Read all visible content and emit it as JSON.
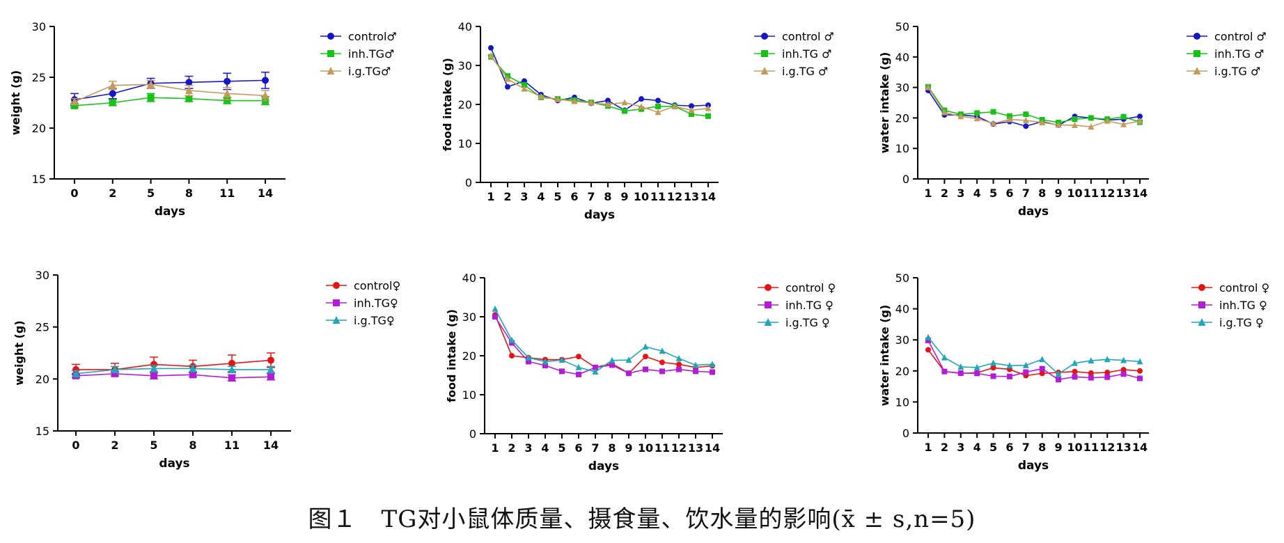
{
  "figure": {
    "caption": "图１　TG对小鼠体质量、摄食量、饮水量的影响(x̄ ± s,n=5)"
  },
  "chart_data": [
    {
      "type": "line",
      "panel": "weight-male",
      "xlabel": "days",
      "ylabel": "weight (g)",
      "categories": [
        "0",
        "2",
        "5",
        "8",
        "11",
        "14"
      ],
      "ylim": [
        15,
        30
      ],
      "yticks": [
        15,
        20,
        25,
        30
      ],
      "grid": false,
      "legend_position": "right",
      "error_bars": true,
      "series": [
        {
          "name": "control♂",
          "color": "#1515c8",
          "marker": "circle",
          "values": [
            22.8,
            23.4,
            24.4,
            24.5,
            24.6,
            24.7
          ],
          "errors": [
            0.6,
            0.5,
            0.5,
            0.6,
            0.8,
            0.8
          ]
        },
        {
          "name": "inh.TG♂",
          "color": "#17c217",
          "marker": "square",
          "values": [
            22.2,
            22.5,
            23.0,
            22.9,
            22.7,
            22.7
          ],
          "errors": [
            0.2,
            0.3,
            0.4,
            0.3,
            0.3,
            0.4
          ]
        },
        {
          "name": "i.g.TG♂",
          "color": "#c49a5a",
          "marker": "triangle",
          "values": [
            22.6,
            24.2,
            24.3,
            23.7,
            23.4,
            23.2
          ],
          "errors": [
            0.3,
            0.4,
            0.4,
            0.5,
            0.6,
            0.5
          ]
        }
      ]
    },
    {
      "type": "line",
      "panel": "food-male",
      "xlabel": "days",
      "ylabel": "food intake (g)",
      "categories": [
        "1",
        "2",
        "3",
        "4",
        "5",
        "6",
        "7",
        "8",
        "9",
        "10",
        "11",
        "12",
        "13",
        "14"
      ],
      "ylim": [
        0,
        40
      ],
      "yticks": [
        0,
        10,
        20,
        30,
        40
      ],
      "grid": false,
      "legend_position": "right",
      "series": [
        {
          "name": "control ♂",
          "color": "#1515c8",
          "marker": "circle",
          "values": [
            34.5,
            24.5,
            26.0,
            22.5,
            21.0,
            21.8,
            20.3,
            21.0,
            18.5,
            21.4,
            21.0,
            19.8,
            19.6,
            19.8
          ]
        },
        {
          "name": "inh.TG ♂",
          "color": "#17c217",
          "marker": "square",
          "values": [
            32.2,
            27.3,
            25.0,
            21.8,
            21.4,
            21.1,
            20.5,
            19.6,
            18.3,
            18.8,
            19.5,
            19.5,
            17.5,
            17.0
          ]
        },
        {
          "name": "i.g.TG ♂",
          "color": "#c49a5a",
          "marker": "triangle",
          "values": [
            32.5,
            26.5,
            24.0,
            22.0,
            21.3,
            20.8,
            20.4,
            20.0,
            20.5,
            19.4,
            18.0,
            19.5,
            18.5,
            19.0
          ]
        }
      ]
    },
    {
      "type": "line",
      "panel": "water-male",
      "xlabel": "days",
      "ylabel": "water intake (g)",
      "categories": [
        "1",
        "2",
        "3",
        "4",
        "5",
        "6",
        "7",
        "8",
        "9",
        "10",
        "11",
        "12",
        "13",
        "14"
      ],
      "ylim": [
        0,
        50
      ],
      "yticks": [
        0,
        10,
        20,
        30,
        40,
        50
      ],
      "grid": false,
      "legend_position": "right",
      "series": [
        {
          "name": "control ♂",
          "color": "#1515c8",
          "marker": "circle",
          "values": [
            29.0,
            21.0,
            21.0,
            20.5,
            18.0,
            18.8,
            17.3,
            18.8,
            17.6,
            20.5,
            20.0,
            19.3,
            19.6,
            20.5
          ]
        },
        {
          "name": "inh.TG ♂",
          "color": "#17c217",
          "marker": "square",
          "values": [
            30.2,
            22.5,
            21.2,
            21.6,
            22.0,
            20.6,
            21.2,
            19.4,
            18.5,
            19.6,
            20.0,
            19.6,
            20.4,
            18.6
          ]
        },
        {
          "name": "i.g.TG ♂",
          "color": "#c49a5a",
          "marker": "triangle",
          "values": [
            30.0,
            21.8,
            20.5,
            19.8,
            18.2,
            19.5,
            19.2,
            18.5,
            17.7,
            17.6,
            17.1,
            19.0,
            17.9,
            19.0
          ]
        }
      ]
    },
    {
      "type": "line",
      "panel": "weight-female",
      "xlabel": "days",
      "ylabel": "weight (g)",
      "categories": [
        "0",
        "2",
        "5",
        "8",
        "11",
        "14"
      ],
      "ylim": [
        15,
        30
      ],
      "yticks": [
        15,
        20,
        25,
        30
      ],
      "grid": false,
      "legend_position": "right",
      "error_bars": true,
      "series": [
        {
          "name": "control♀",
          "color": "#e51414",
          "marker": "circle",
          "values": [
            20.9,
            20.9,
            21.4,
            21.2,
            21.5,
            21.8
          ],
          "errors": [
            0.5,
            0.6,
            0.7,
            0.6,
            0.8,
            0.7
          ]
        },
        {
          "name": "inh.TG♀",
          "color": "#b41bd8",
          "marker": "square",
          "values": [
            20.3,
            20.5,
            20.3,
            20.4,
            20.1,
            20.2
          ],
          "errors": [
            0.2,
            0.2,
            0.3,
            0.2,
            0.3,
            0.3
          ]
        },
        {
          "name": "i.g.TG♀",
          "color": "#1fa6b8",
          "marker": "triangle",
          "values": [
            20.5,
            20.9,
            21.0,
            21.0,
            20.9,
            20.9
          ],
          "errors": [
            0.3,
            0.3,
            0.3,
            0.3,
            0.3,
            0.3
          ]
        }
      ]
    },
    {
      "type": "line",
      "panel": "food-female",
      "xlabel": "days",
      "ylabel": "food intake (g)",
      "categories": [
        "1",
        "2",
        "3",
        "4",
        "5",
        "6",
        "7",
        "8",
        "9",
        "10",
        "11",
        "12",
        "13",
        "14"
      ],
      "ylim": [
        0,
        40
      ],
      "yticks": [
        0,
        10,
        20,
        30,
        40
      ],
      "grid": false,
      "legend_position": "right",
      "series": [
        {
          "name": "control ♀",
          "color": "#e51414",
          "marker": "circle",
          "values": [
            30.5,
            20.0,
            19.5,
            19.0,
            19.0,
            19.8,
            17.0,
            18.0,
            15.5,
            19.8,
            18.3,
            17.8,
            17.0,
            17.4
          ]
        },
        {
          "name": "inh.TG ♀",
          "color": "#b41bd8",
          "marker": "square",
          "values": [
            30.0,
            23.3,
            18.5,
            17.5,
            16.0,
            15.2,
            17.0,
            17.6,
            15.5,
            16.5,
            16.0,
            16.5,
            16.0,
            15.8
          ]
        },
        {
          "name": "i.g.TG ♀",
          "color": "#1fa6b8",
          "marker": "triangle",
          "values": [
            32.0,
            24.0,
            19.5,
            18.5,
            18.9,
            17.0,
            15.9,
            18.8,
            18.9,
            22.3,
            21.2,
            19.3,
            17.6,
            17.8
          ]
        }
      ]
    },
    {
      "type": "line",
      "panel": "water-female",
      "xlabel": "days",
      "ylabel": "water intake (g)",
      "categories": [
        "1",
        "2",
        "3",
        "4",
        "5",
        "6",
        "7",
        "8",
        "9",
        "10",
        "11",
        "12",
        "13",
        "14"
      ],
      "ylim": [
        0,
        50
      ],
      "yticks": [
        0,
        10,
        20,
        30,
        40,
        50
      ],
      "grid": false,
      "legend_position": "right",
      "series": [
        {
          "name": "control ♀",
          "color": "#e51414",
          "marker": "circle",
          "values": [
            26.8,
            19.8,
            19.2,
            19.4,
            21.0,
            20.5,
            18.5,
            19.2,
            19.5,
            19.8,
            19.3,
            19.5,
            20.4,
            20.0
          ]
        },
        {
          "name": "inh.TG ♀",
          "color": "#b41bd8",
          "marker": "square",
          "values": [
            29.8,
            19.8,
            19.3,
            19.2,
            18.3,
            18.2,
            19.6,
            20.7,
            17.2,
            18.1,
            17.8,
            18.0,
            19.0,
            17.6
          ]
        },
        {
          "name": "i.g.TG ♀",
          "color": "#1fa6b8",
          "marker": "triangle",
          "values": [
            30.8,
            24.3,
            21.3,
            21.1,
            22.5,
            21.7,
            21.8,
            23.7,
            19.0,
            22.5,
            23.3,
            23.7,
            23.4,
            23.0
          ]
        }
      ]
    }
  ]
}
